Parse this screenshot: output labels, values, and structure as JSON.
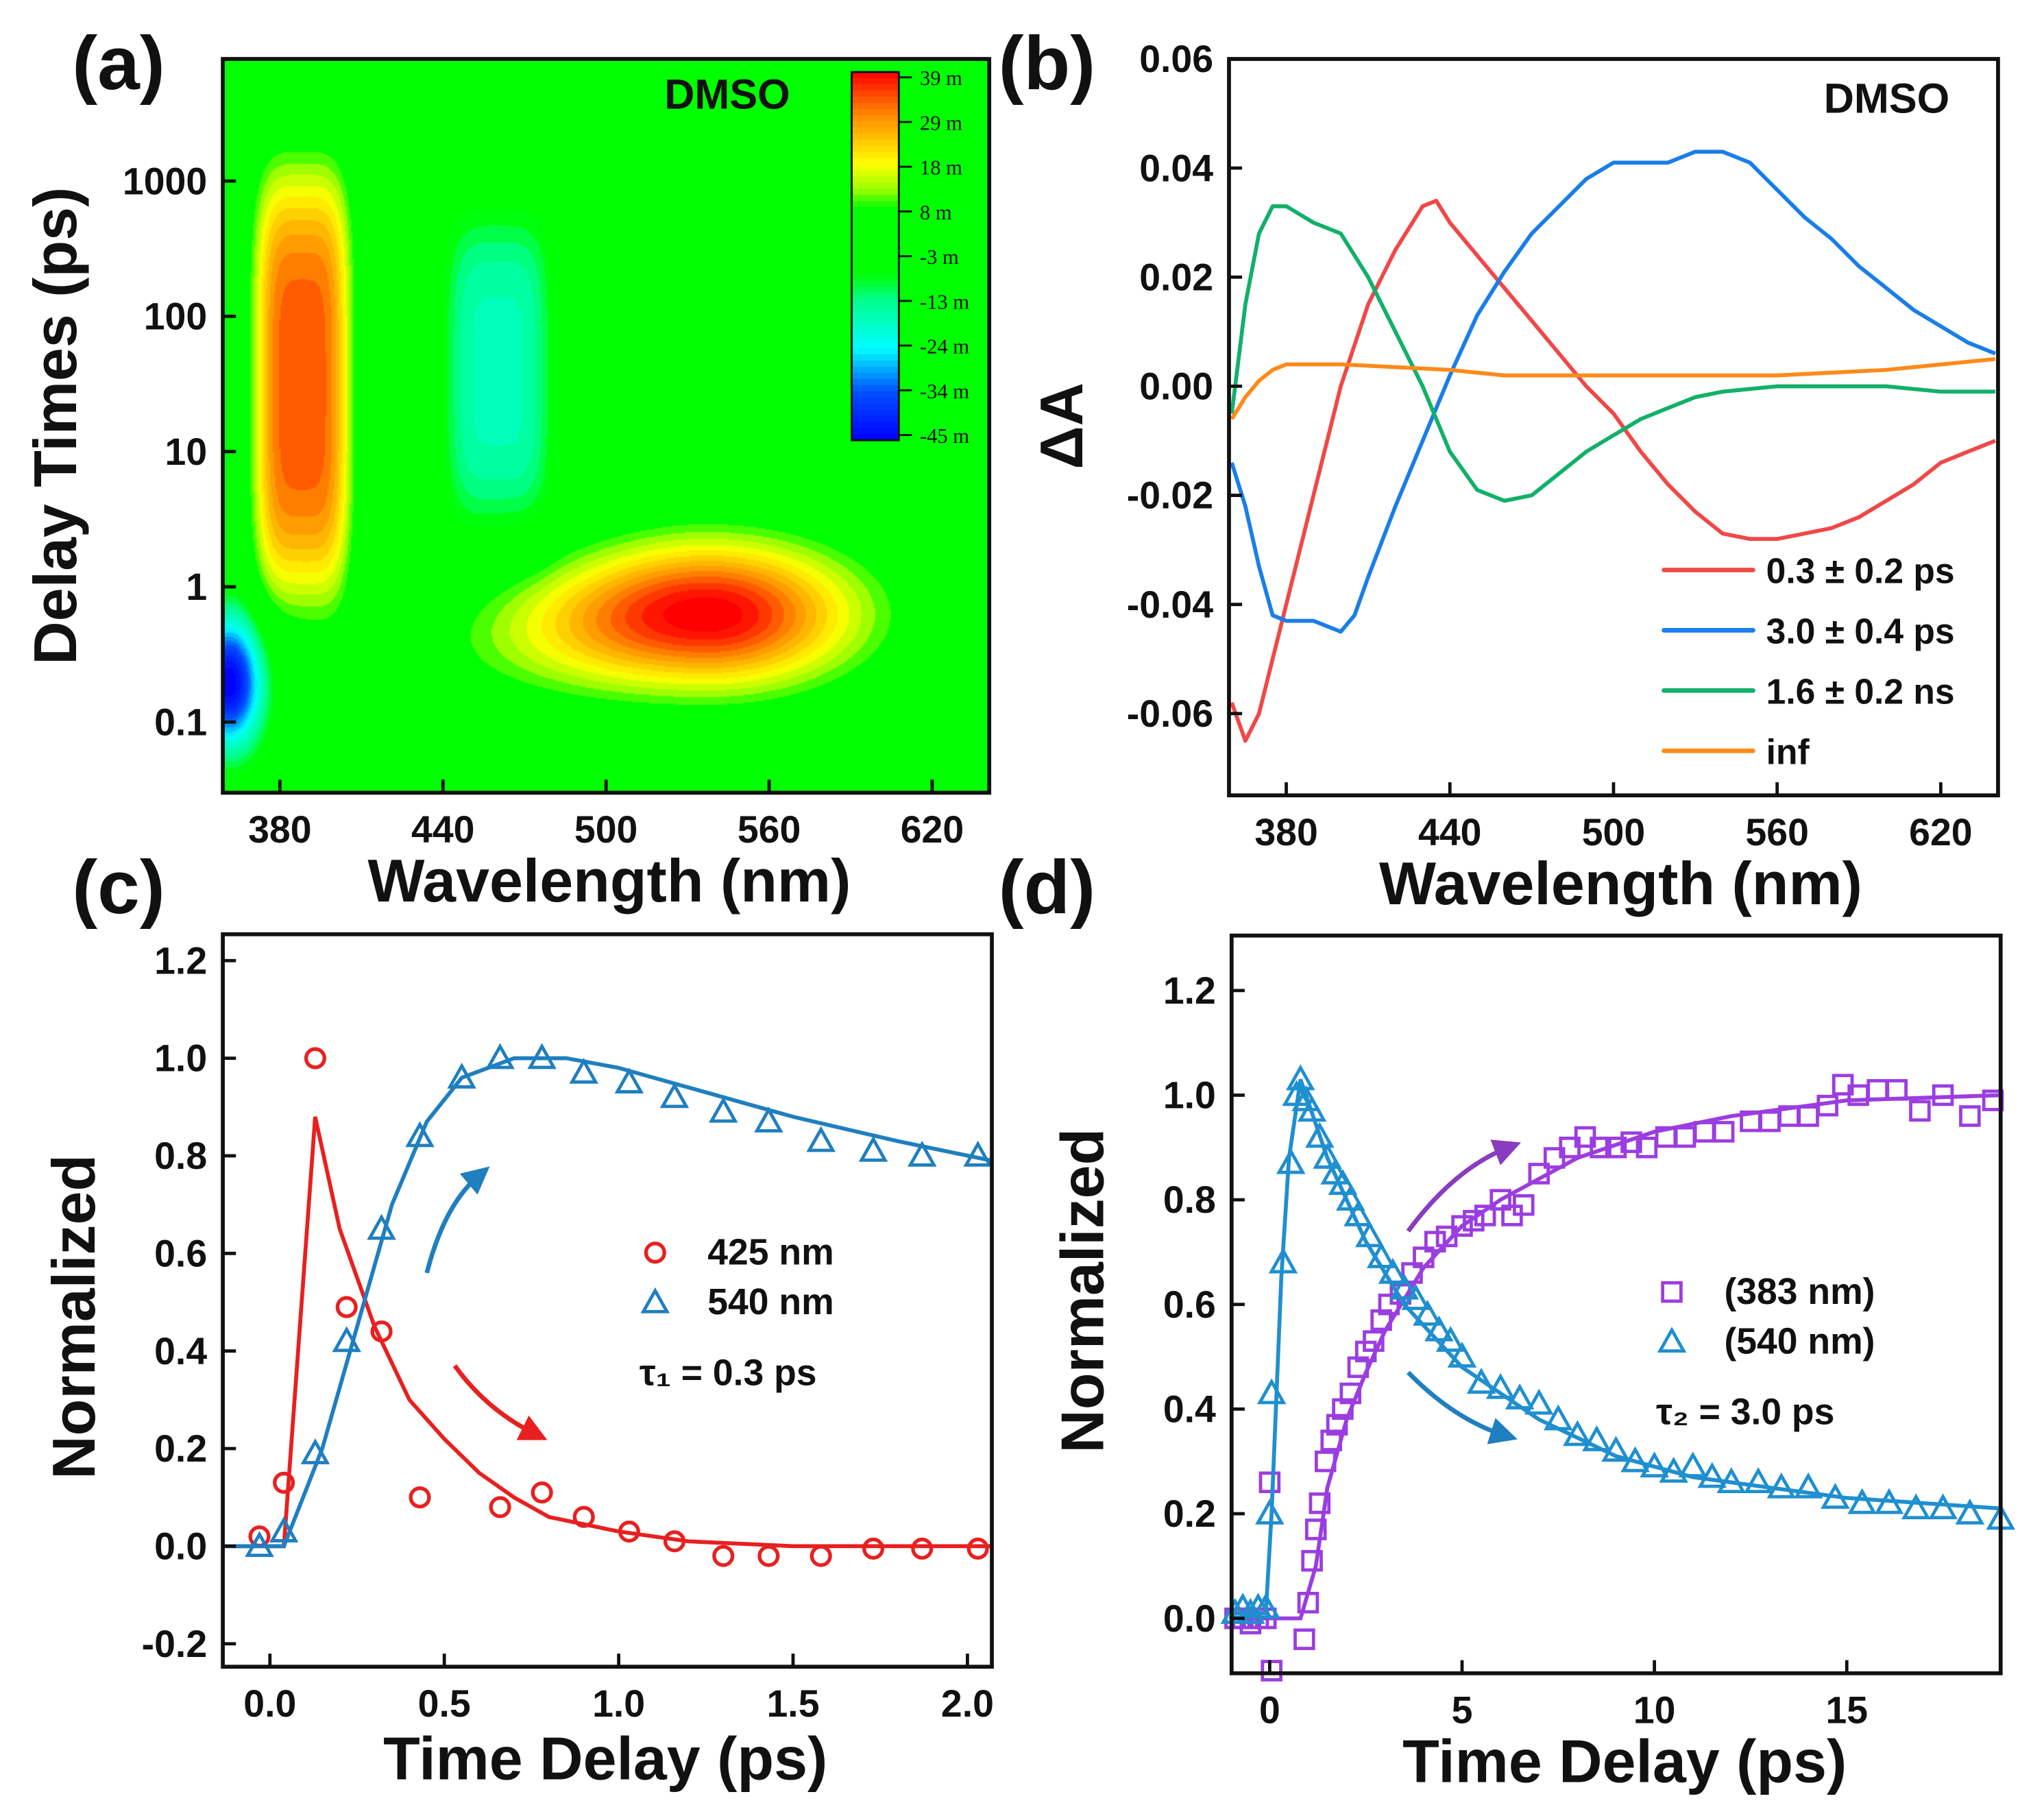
{
  "chart_data": [
    {
      "panel": "(a)",
      "type": "heatmap",
      "annotation": "DMSO",
      "xlabel": "Wavelength (nm)",
      "ylabel": "Delay Times (ps)",
      "xlim": [
        359,
        641
      ],
      "ylim": [
        0.03,
        8000
      ],
      "yscale": "log",
      "xticks": [
        380,
        440,
        500,
        560,
        620
      ],
      "yticks": [
        {
          "v": 0.1,
          "label": "0.1"
        },
        {
          "v": 1,
          "label": "1"
        },
        {
          "v": 10,
          "label": "10"
        },
        {
          "v": 100,
          "label": "100"
        },
        {
          "v": 1000,
          "label": "1000"
        }
      ],
      "colorbar": {
        "labels": [
          "39 m",
          "29 m",
          "18 m",
          "8 m",
          "-3 m",
          "-13 m",
          "-24 m",
          "-34 m",
          "-45 m"
        ],
        "range": [
          -45,
          39
        ]
      },
      "components_mOD": [
        {
          "wavelength_nm": 388,
          "width_nm": 15,
          "log10_delay": 1.5,
          "width_log": 1.35,
          "amplitude": 33
        },
        {
          "wavelength_nm": 460,
          "width_nm": 17,
          "log10_delay": 1.6,
          "width_log": 1.0,
          "amplitude": -17
        },
        {
          "wavelength_nm": 537,
          "width_nm": 48,
          "log10_delay": -0.2,
          "width_log": 0.38,
          "amplitude": 41
        },
        {
          "wavelength_nm": 361,
          "width_nm": 9,
          "log10_delay": -0.7,
          "width_log": 0.35,
          "amplitude": -46
        }
      ]
    },
    {
      "panel": "(b)",
      "type": "line",
      "annotation": "DMSO",
      "xlabel": "Wavelength (nm)",
      "ylabel": "ΔA",
      "xlim": [
        359,
        641
      ],
      "ylim": [
        -0.075,
        0.06
      ],
      "xticks": [
        380,
        440,
        500,
        560,
        620
      ],
      "yticks": [
        {
          "v": -0.06,
          "label": "-0.06"
        },
        {
          "v": -0.04,
          "label": "-0.04"
        },
        {
          "v": -0.02,
          "label": "-0.02"
        },
        {
          "v": 0,
          "label": "0.00"
        },
        {
          "v": 0.02,
          "label": "0.02"
        },
        {
          "v": 0.04,
          "label": "0.04"
        },
        {
          "v": 0.06,
          "label": "0.06"
        }
      ],
      "legend_position": "bottom-right",
      "series": [
        {
          "name": "0.3 ± 0.2 ps",
          "color": "#f04848",
          "x": [
            360,
            365,
            370,
            380,
            390,
            400,
            410,
            420,
            430,
            435,
            440,
            450,
            460,
            470,
            480,
            490,
            500,
            510,
            520,
            530,
            540,
            550,
            560,
            570,
            580,
            590,
            600,
            610,
            620,
            630,
            640
          ],
          "y": [
            -0.058,
            -0.065,
            -0.06,
            -0.04,
            -0.02,
            0.0,
            0.015,
            0.025,
            0.033,
            0.034,
            0.03,
            0.024,
            0.018,
            0.012,
            0.006,
            0.0,
            -0.005,
            -0.012,
            -0.018,
            -0.023,
            -0.027,
            -0.028,
            -0.028,
            -0.027,
            -0.026,
            -0.024,
            -0.021,
            -0.018,
            -0.014,
            -0.012,
            -0.01
          ]
        },
        {
          "name": "3.0 ± 0.4 ps",
          "color": "#1a7ee8",
          "x": [
            360,
            365,
            370,
            375,
            380,
            390,
            400,
            405,
            410,
            420,
            430,
            440,
            450,
            460,
            470,
            480,
            490,
            500,
            510,
            520,
            530,
            540,
            550,
            560,
            570,
            580,
            590,
            600,
            610,
            620,
            630,
            640
          ],
          "y": [
            -0.014,
            -0.022,
            -0.033,
            -0.042,
            -0.043,
            -0.043,
            -0.045,
            -0.042,
            -0.035,
            -0.022,
            -0.01,
            0.002,
            0.013,
            0.021,
            0.028,
            0.033,
            0.038,
            0.041,
            0.041,
            0.041,
            0.043,
            0.043,
            0.041,
            0.036,
            0.031,
            0.027,
            0.022,
            0.018,
            0.014,
            0.011,
            0.008,
            0.006
          ]
        },
        {
          "name": "1.6 ± 0.2 ns",
          "color": "#12b06a",
          "x": [
            360,
            365,
            370,
            375,
            380,
            390,
            400,
            410,
            420,
            430,
            440,
            450,
            460,
            470,
            480,
            490,
            500,
            510,
            520,
            530,
            540,
            560,
            580,
            600,
            620,
            640
          ],
          "y": [
            -0.005,
            0.015,
            0.028,
            0.033,
            0.033,
            0.03,
            0.028,
            0.02,
            0.01,
            0.0,
            -0.012,
            -0.019,
            -0.021,
            -0.02,
            -0.016,
            -0.012,
            -0.009,
            -0.006,
            -0.004,
            -0.002,
            -0.001,
            0.0,
            0.0,
            0.0,
            -0.001,
            -0.001
          ]
        },
        {
          "name": "inf",
          "color": "#ff8a1a",
          "x": [
            360,
            365,
            370,
            375,
            380,
            400,
            440,
            460,
            500,
            560,
            600,
            640
          ],
          "y": [
            -0.006,
            -0.002,
            0.001,
            0.003,
            0.004,
            0.004,
            0.003,
            0.002,
            0.002,
            0.002,
            0.003,
            0.005
          ]
        }
      ]
    },
    {
      "panel": "(c)",
      "type": "scatter",
      "xlabel": "Time Delay (ps)",
      "ylabel": "Normalized",
      "xlim": [
        -0.135,
        2.07
      ],
      "ylim": [
        -0.247,
        1.254
      ],
      "xticks": [
        {
          "v": 0,
          "label": "0.0"
        },
        {
          "v": 0.5,
          "label": "0.5"
        },
        {
          "v": 1,
          "label": "1.0"
        },
        {
          "v": 1.5,
          "label": "1.5"
        },
        {
          "v": 2,
          "label": "2.0"
        }
      ],
      "yticks": [
        {
          "v": -0.2,
          "label": "-0.2"
        },
        {
          "v": 0,
          "label": "0.0"
        },
        {
          "v": 0.2,
          "label": "0.2"
        },
        {
          "v": 0.4,
          "label": "0.4"
        },
        {
          "v": 0.6,
          "label": "0.6"
        },
        {
          "v": 0.8,
          "label": "0.8"
        },
        {
          "v": 1.0,
          "label": "1.0"
        },
        {
          "v": 1.2,
          "label": "1.2"
        }
      ],
      "legend_position": "center-right",
      "annotation": "τ₁ = 0.3 ps",
      "series": [
        {
          "name": "425 nm",
          "color": "#e82020",
          "marker": "circle",
          "x": [
            -0.03,
            0.04,
            0.13,
            0.22,
            0.32,
            0.43,
            0.66,
            0.78,
            0.9,
            1.03,
            1.16,
            1.3,
            1.43,
            1.58,
            1.73,
            1.87,
            2.03
          ],
          "y": [
            0.02,
            0.13,
            1.0,
            0.49,
            0.44,
            0.1,
            0.08,
            0.11,
            0.06,
            0.03,
            0.01,
            -0.02,
            -0.02,
            -0.02,
            -0.005,
            -0.005,
            -0.005
          ],
          "fit_x": [
            -0.135,
            0.04,
            0.13,
            0.2,
            0.3,
            0.4,
            0.5,
            0.6,
            0.7,
            0.8,
            1.0,
            1.2,
            1.5,
            2.07
          ],
          "fit_y": [
            0,
            0,
            0.88,
            0.65,
            0.45,
            0.3,
            0.22,
            0.15,
            0.1,
            0.06,
            0.03,
            0.01,
            0,
            0
          ]
        },
        {
          "name": "540 nm",
          "color": "#1f7fbf",
          "marker": "triangle",
          "x": [
            -0.03,
            0.04,
            0.13,
            0.22,
            0.32,
            0.43,
            0.55,
            0.66,
            0.78,
            0.9,
            1.03,
            1.16,
            1.3,
            1.43,
            1.58,
            1.73,
            1.87,
            2.03
          ],
          "y": [
            0,
            0.03,
            0.19,
            0.42,
            0.65,
            0.84,
            0.96,
            1.0,
            1.0,
            0.97,
            0.95,
            0.92,
            0.89,
            0.87,
            0.83,
            0.81,
            0.8,
            0.8
          ],
          "fit_x": [
            -0.135,
            0.04,
            0.15,
            0.25,
            0.35,
            0.45,
            0.55,
            0.7,
            0.85,
            1.0,
            1.2,
            1.5,
            1.8,
            2.07
          ],
          "fit_y": [
            0,
            0,
            0.2,
            0.45,
            0.7,
            0.87,
            0.96,
            1.0,
            1.0,
            0.98,
            0.94,
            0.88,
            0.83,
            0.79
          ]
        }
      ]
    },
    {
      "panel": "(d)",
      "type": "scatter",
      "xlabel": "Time Delay (ps)",
      "ylabel": "Normalized",
      "xlim": [
        -0.99,
        19
      ],
      "ylim": [
        -0.105,
        1.305
      ],
      "xticks": [
        {
          "v": 0,
          "label": "0"
        },
        {
          "v": 5,
          "label": "5"
        },
        {
          "v": 10,
          "label": "10"
        },
        {
          "v": 15,
          "label": "15"
        }
      ],
      "yticks": [
        {
          "v": 0,
          "label": "0.0"
        },
        {
          "v": 0.2,
          "label": "0.2"
        },
        {
          "v": 0.4,
          "label": "0.4"
        },
        {
          "v": 0.6,
          "label": "0.6"
        },
        {
          "v": 0.8,
          "label": "0.8"
        },
        {
          "v": 1.0,
          "label": "1.0"
        },
        {
          "v": 1.2,
          "label": "1.2"
        }
      ],
      "legend_position": "center-right",
      "annotation": "τ₂ = 3.0 ps",
      "series": [
        {
          "name": "(383 nm)",
          "color": "#9b3de0",
          "marker": "square",
          "x": [
            -0.9,
            -0.7,
            -0.5,
            -0.3,
            -0.1,
            0.0,
            0.05,
            0.9,
            1.0,
            1.1,
            1.2,
            1.3,
            1.45,
            1.6,
            1.75,
            1.9,
            2.1,
            2.3,
            2.5,
            2.7,
            2.9,
            3.1,
            3.4,
            3.7,
            4.0,
            4.3,
            4.6,
            5.0,
            5.3,
            5.6,
            6.0,
            6.3,
            6.6,
            7.0,
            7.4,
            7.8,
            8.2,
            8.6,
            9.0,
            9.4,
            9.8,
            10.3,
            10.8,
            11.3,
            11.8,
            12.5,
            13.0,
            13.5,
            14.0,
            14.5,
            14.9,
            15.3,
            15.8,
            16.3,
            16.9,
            17.5,
            18.2,
            18.8
          ],
          "y": [
            0,
            0,
            -0.01,
            0,
            0,
            0.26,
            -0.1,
            -0.04,
            0.03,
            0.11,
            0.17,
            0.22,
            0.3,
            0.34,
            0.37,
            0.4,
            0.43,
            0.48,
            0.51,
            0.53,
            0.57,
            0.6,
            0.62,
            0.66,
            0.69,
            0.72,
            0.73,
            0.75,
            0.76,
            0.77,
            0.8,
            0.77,
            0.79,
            0.85,
            0.88,
            0.9,
            0.92,
            0.9,
            0.9,
            0.91,
            0.9,
            0.92,
            0.92,
            0.93,
            0.93,
            0.95,
            0.95,
            0.96,
            0.96,
            0.98,
            1.02,
            1.0,
            1.01,
            1.01,
            0.97,
            1.0,
            0.96,
            0.99
          ],
          "fit_x": [
            -0.99,
            0.8,
            1.2,
            1.5,
            2,
            2.5,
            3,
            4,
            5,
            6,
            8,
            10,
            12,
            15,
            19
          ],
          "fit_y": [
            0,
            0,
            0.1,
            0.25,
            0.38,
            0.47,
            0.55,
            0.67,
            0.75,
            0.8,
            0.88,
            0.93,
            0.96,
            0.99,
            1.0
          ]
        },
        {
          "name": "(540 nm)",
          "color": "#1f8fcf",
          "marker": "triangle",
          "x": [
            -0.9,
            -0.7,
            -0.5,
            -0.3,
            -0.1,
            0.0,
            0.05,
            0.35,
            0.55,
            0.7,
            0.8,
            0.95,
            1.1,
            1.3,
            1.5,
            1.7,
            1.9,
            2.1,
            2.3,
            2.6,
            2.9,
            3.2,
            3.5,
            3.8,
            4.1,
            4.4,
            4.7,
            5.0,
            5.5,
            6.0,
            6.5,
            7.0,
            7.5,
            8.0,
            8.5,
            9.0,
            9.5,
            10.0,
            10.5,
            11.0,
            11.5,
            12.0,
            12.7,
            13.3,
            14.0,
            14.7,
            15.4,
            16.1,
            16.8,
            17.5,
            18.2,
            19.0
          ],
          "y": [
            0.01,
            0.02,
            0.01,
            0.02,
            0.02,
            0.2,
            0.43,
            0.68,
            0.87,
            1.0,
            1.03,
            0.99,
            0.97,
            0.92,
            0.88,
            0.85,
            0.83,
            0.8,
            0.77,
            0.73,
            0.69,
            0.66,
            0.63,
            0.61,
            0.58,
            0.55,
            0.53,
            0.5,
            0.45,
            0.44,
            0.42,
            0.41,
            0.38,
            0.35,
            0.34,
            0.32,
            0.3,
            0.29,
            0.28,
            0.29,
            0.27,
            0.26,
            0.26,
            0.25,
            0.25,
            0.23,
            0.22,
            0.22,
            0.21,
            0.21,
            0.2,
            0.19
          ],
          "fit_x": [
            -0.99,
            -0.1,
            0.05,
            0.3,
            0.5,
            0.8,
            1.5,
            2.5,
            3.5,
            5,
            7,
            9,
            11,
            13,
            15,
            17,
            19
          ],
          "fit_y": [
            0.01,
            0.01,
            0.2,
            0.65,
            0.88,
            1.03,
            0.88,
            0.72,
            0.6,
            0.48,
            0.38,
            0.31,
            0.27,
            0.25,
            0.23,
            0.22,
            0.21
          ]
        }
      ]
    }
  ],
  "panel_labels": [
    "(a)",
    "(b)",
    "(c)",
    "(d)"
  ],
  "colors": {
    "frame": "#111111",
    "arrow_red": "#e82020",
    "arrow_blue": "#1f7fbf",
    "arrow_purple": "#8a3cc0"
  }
}
